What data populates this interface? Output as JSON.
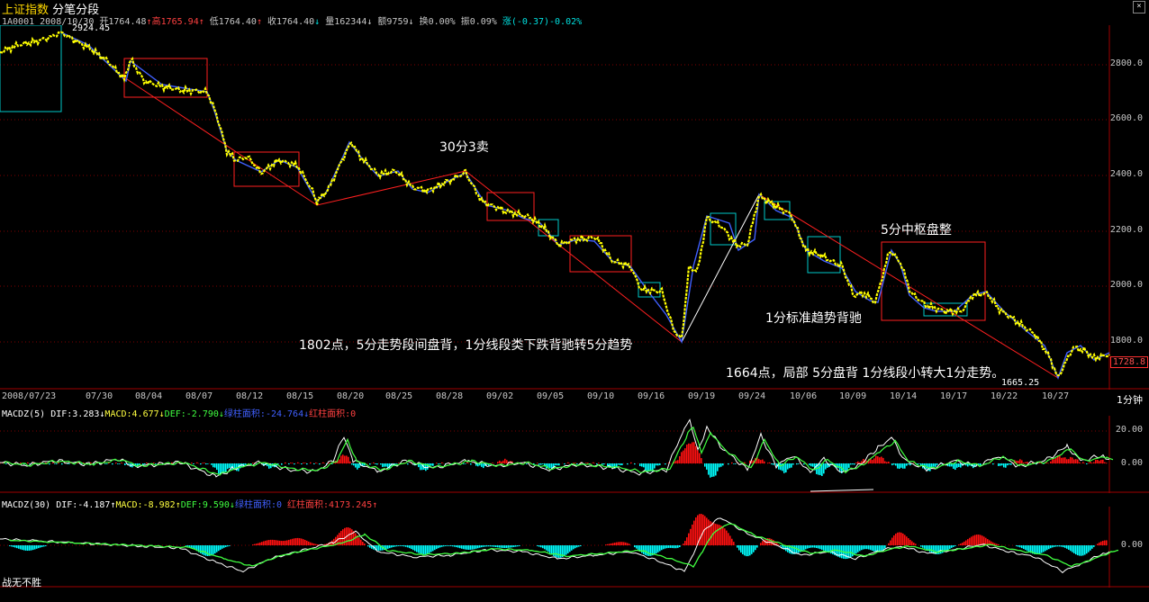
{
  "header": {
    "name": "上证指数",
    "subtitle": "分笔分段",
    "code_date": "1A0001 2008/10/30",
    "open_label": "开1764.48",
    "high_label": "高1765.94",
    "low_label": "低1764.40",
    "close_label": "收1764.40",
    "volume_label": "量162344",
    "amount_label": "额9759",
    "turnover_label": "换0.00%",
    "amplitude_label": "振0.09%",
    "change_label": "涨(-0.37)-0.02%"
  },
  "main_chart": {
    "y_ticks": [
      "2800.0",
      "2600.0",
      "2400.0",
      "2200.0",
      "2000.0",
      "1800.0"
    ],
    "x_ticks": [
      "2008/07/23",
      "07/30",
      "08/04",
      "08/07",
      "08/12",
      "08/15",
      "08/20",
      "08/25",
      "08/28",
      "09/02",
      "09/05",
      "09/10",
      "09/16",
      "09/19",
      "09/24",
      "10/06",
      "10/09",
      "10/14",
      "10/17",
      "10/22",
      "10/27"
    ],
    "period_label": "1分钟",
    "high_tag": "2924.45",
    "low_tag": "1665.25",
    "last_price_tag": "1728.8",
    "annotations": {
      "sell": "30分3卖",
      "center": "5分中枢盘整",
      "divergence_1min": "1分标准趋势背驰",
      "note_1802": "1802点，5分走势段间盘背，1分线段类下跌背驰转5分趋势",
      "note_1664": "1664点，局部 5分盘背 1分线段小转大1分走势。"
    }
  },
  "macd5": {
    "name": "MACDZ(5)",
    "dif": "DIF:3.283",
    "macd": "MACD:4.677",
    "def": "DEF:-2.790",
    "green_area": "绿柱面积:-24.764",
    "red_area": "红柱面积:0",
    "y_ticks": [
      "20.00",
      "0.00"
    ]
  },
  "macd30": {
    "name": "MACDZ(30)",
    "dif": "DIF:-4.187",
    "macd": "MACD:-8.982",
    "def": "DEF:9.590",
    "green_area": "绿柱面积:0",
    "red_area": "红柱面积:4173.245",
    "y_ticks": [
      "0.00"
    ]
  },
  "footer": {
    "slogan": "战无不胜"
  },
  "icons": [
    "up-arrow-icon",
    "down-arrow-icon",
    "close-icon"
  ],
  "colors": {
    "background": "#000000",
    "grid": "#800000",
    "price": "#ffff00",
    "down_stroke": "#4060ff",
    "box_red": "#ff2020",
    "box_cyan": "#00c8c8",
    "macd_red": "#ff1010",
    "macd_cyan": "#00ffff"
  }
}
